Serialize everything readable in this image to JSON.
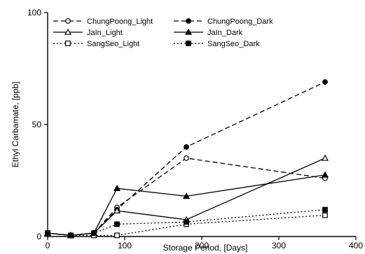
{
  "chart_data": {
    "type": "line",
    "title": "",
    "xlabel": "Storage Period, [Days]",
    "ylabel": "Ethyl Carbamate, [ppb]",
    "xlim": [
      0,
      400
    ],
    "ylim": [
      0,
      100
    ],
    "x_ticks": [
      0,
      100,
      200,
      300,
      400
    ],
    "y_ticks": [
      0,
      50,
      100
    ],
    "grid": false,
    "legend_position": "top-left",
    "series": [
      {
        "name": "ChungPoong_Light",
        "line": "dashed",
        "marker": "circle-open",
        "color": "#000000",
        "points": [
          [
            0,
            1.5
          ],
          [
            30,
            0.5
          ],
          [
            60,
            1.5
          ],
          [
            90,
            13
          ],
          [
            180,
            35
          ],
          [
            360,
            26
          ]
        ]
      },
      {
        "name": "ChungPoong_Dark",
        "line": "dashed",
        "marker": "circle-filled",
        "color": "#000000",
        "points": [
          [
            0,
            1.5
          ],
          [
            30,
            0.5
          ],
          [
            60,
            1.5
          ],
          [
            90,
            12
          ],
          [
            180,
            40
          ],
          [
            360,
            69
          ]
        ]
      },
      {
        "name": "JaIn_Light",
        "line": "solid",
        "marker": "triangle-open",
        "color": "#000000",
        "points": [
          [
            0,
            1.5
          ],
          [
            30,
            0.5
          ],
          [
            60,
            1.5
          ],
          [
            90,
            11.5
          ],
          [
            180,
            7.5
          ],
          [
            360,
            35
          ]
        ]
      },
      {
        "name": "JaIn_Dark",
        "line": "solid",
        "marker": "triangle-filled",
        "color": "#000000",
        "points": [
          [
            0,
            1.5
          ],
          [
            30,
            0.5
          ],
          [
            60,
            1.5
          ],
          [
            90,
            21.5
          ],
          [
            180,
            18
          ],
          [
            360,
            27.5
          ]
        ]
      },
      {
        "name": "SangSeo_Light",
        "line": "dotted",
        "marker": "square-open",
        "color": "#000000",
        "points": [
          [
            0,
            1.5
          ],
          [
            30,
            0.5
          ],
          [
            60,
            0.5
          ],
          [
            90,
            0.5
          ],
          [
            180,
            5.5
          ],
          [
            360,
            9.5
          ]
        ]
      },
      {
        "name": "SangSeo_Dark",
        "line": "dotted",
        "marker": "square-filled",
        "color": "#000000",
        "points": [
          [
            0,
            1.5
          ],
          [
            30,
            0.5
          ],
          [
            60,
            1.5
          ],
          [
            90,
            5.5
          ],
          [
            180,
            6.5
          ],
          [
            360,
            12
          ]
        ]
      }
    ]
  }
}
